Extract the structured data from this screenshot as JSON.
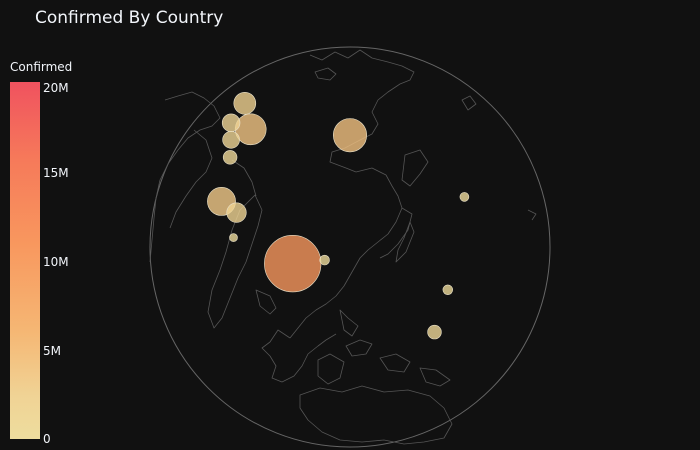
{
  "chart_data": {
    "type": "scatter-geo",
    "title": "Confirmed By Country",
    "projection": "orthographic",
    "colorbar": {
      "title": "Confirmed",
      "tick_labels": [
        "20M",
        "15M",
        "10M",
        "5M",
        "0"
      ],
      "tick_values": [
        20000000,
        15000000,
        10000000,
        5000000,
        0
      ],
      "colors": [
        "#f0525f",
        "#f67a5a",
        "#f8975e",
        "#f5b774",
        "#eedd9e"
      ]
    },
    "points_note": "",
    "points": [
      {
        "label": "",
        "lon": 77,
        "lat": 22,
        "confirmed": 10000000
      },
      {
        "label": "",
        "lon": 95,
        "lat": 62,
        "confirmed": 3500000
      },
      {
        "label": "",
        "lon": 35,
        "lat": 55,
        "confirmed": 3000000
      },
      {
        "label": "",
        "lon": 45,
        "lat": 33,
        "confirmed": 2500000
      },
      {
        "label": "",
        "lon": 12,
        "lat": 58,
        "confirmed": 1500000
      },
      {
        "label": "",
        "lon": 53,
        "lat": 32,
        "confirmed": 1200000
      },
      {
        "label": "",
        "lon": 20,
        "lat": 52,
        "confirmed": 1000000
      },
      {
        "label": "",
        "lon": 30,
        "lat": 49,
        "confirmed": 900000
      },
      {
        "label": "",
        "lon": 37,
        "lat": 45,
        "confirmed": 600000
      },
      {
        "label": "",
        "lon": 120,
        "lat": 0,
        "confirmed": 600000
      },
      {
        "label": "",
        "lon": 125,
        "lat": 12,
        "confirmed": 300000
      },
      {
        "label": "",
        "lon": 140,
        "lat": 36,
        "confirmed": 250000
      },
      {
        "label": "",
        "lon": 87,
        "lat": 24,
        "confirmed": 300000
      },
      {
        "label": "",
        "lon": 55,
        "lat": 25,
        "confirmed": 200000
      }
    ]
  }
}
